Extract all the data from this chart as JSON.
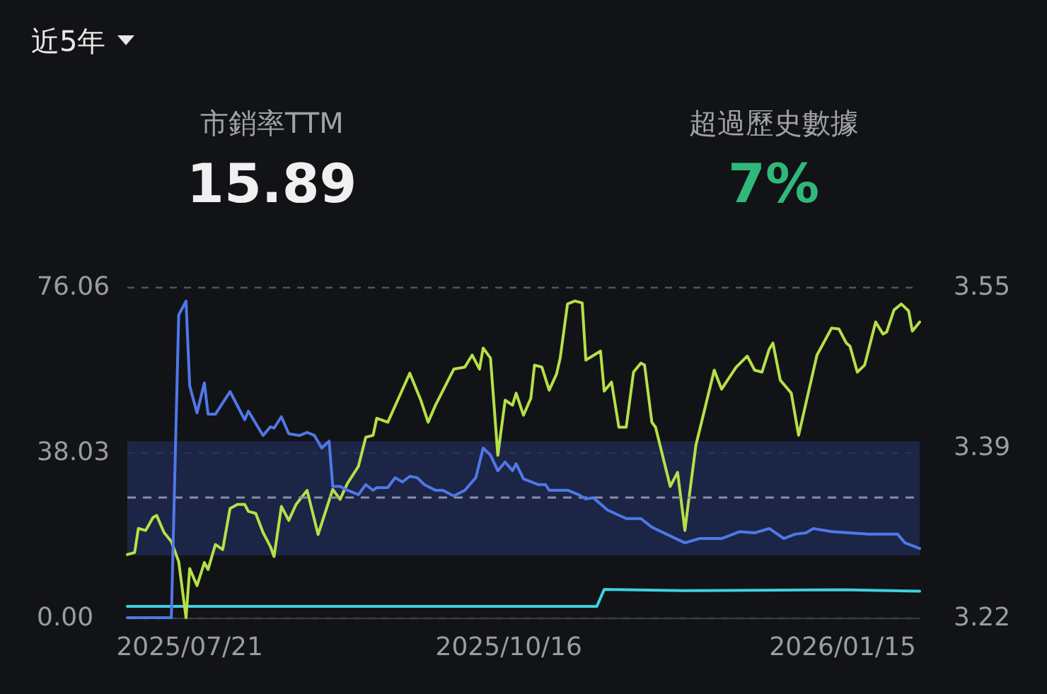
{
  "chart_data": {
    "type": "line",
    "annotations": [
      "近5年",
      "市銷率TTM",
      "15.89",
      "超過歷史數據",
      "7%"
    ],
    "xlim": [
      "2025-07-04",
      "2026-02-05"
    ],
    "xticks": [
      {
        "value": "2025-07-21",
        "label": "2025/07/21"
      },
      {
        "value": "2025-10-16",
        "label": "2025/10/16"
      },
      {
        "value": "2026-01-15",
        "label": "2026/01/15"
      }
    ],
    "ylim": [
      0,
      76.06
    ],
    "yticks": [
      {
        "value": 0,
        "label": "0.00"
      },
      38.03,
      76.06
    ],
    "y2lim": [
      3.22,
      3.55
    ],
    "y2ticks": [
      3.22,
      3.39,
      3.55
    ],
    "grid": "y",
    "marker": "none",
    "line_style": "solid",
    "bands": [
      {
        "axis": "y",
        "from": 14.3,
        "to": 40.6,
        "color": "#1f2b52"
      }
    ],
    "ref_lines": [
      {
        "axis": "y",
        "value": 27.6,
        "line_style": "dashed",
        "color": "#8a90a0"
      }
    ],
    "series": [
      {
        "color": "#3fd0e0",
        "x": [
          "2025-07-04",
          "2025-11-09",
          "2025-11-11",
          "2025-12-03",
          "2026-01-15",
          "2026-02-05"
        ],
        "values": [
          2.6,
          2.6,
          6.5,
          6.2,
          6.4,
          6.1
        ]
      },
      {
        "color": "#b5e048",
        "axis": "y2",
        "x": [
          "2025-07-04",
          "2025-07-06",
          "2025-07-07",
          "2025-07-09",
          "2025-07-11",
          "2025-07-12",
          "2025-07-14",
          "2025-07-16",
          "2025-07-18",
          "2025-07-20",
          "2025-07-21",
          "2025-07-23",
          "2025-07-25",
          "2025-07-26",
          "2025-07-28",
          "2025-07-30",
          "2025-08-01",
          "2025-08-03",
          "2025-08-05",
          "2025-08-06",
          "2025-08-08",
          "2025-08-10",
          "2025-08-12",
          "2025-08-13",
          "2025-08-15",
          "2025-08-17",
          "2025-08-19",
          "2025-08-22",
          "2025-08-25",
          "2025-08-29",
          "2025-08-31",
          "2025-09-02",
          "2025-09-05",
          "2025-09-07",
          "2025-09-09",
          "2025-09-10",
          "2025-09-13",
          "2025-09-19",
          "2025-09-22",
          "2025-09-24",
          "2025-09-26",
          "2025-10-01",
          "2025-10-04",
          "2025-10-06",
          "2025-10-08",
          "2025-10-09",
          "2025-10-11",
          "2025-10-13",
          "2025-10-15",
          "2025-10-17",
          "2025-10-18",
          "2025-10-20",
          "2025-10-22",
          "2025-10-23",
          "2025-10-25",
          "2025-10-27",
          "2025-10-29",
          "2025-10-30",
          "2025-11-01",
          "2025-11-03",
          "2025-11-05",
          "2025-11-06",
          "2025-11-10",
          "2025-11-11",
          "2025-11-13",
          "2025-11-15",
          "2025-11-17",
          "2025-11-19",
          "2025-11-21",
          "2025-11-22",
          "2025-11-24",
          "2025-11-25",
          "2025-11-29",
          "2025-12-01",
          "2025-12-03",
          "2025-12-04",
          "2025-12-06",
          "2025-12-11",
          "2025-12-13",
          "2025-12-17",
          "2025-12-20",
          "2025-12-22",
          "2025-12-24",
          "2025-12-26",
          "2025-12-27",
          "2025-12-29",
          "2026-01-01",
          "2026-01-03",
          "2026-01-08",
          "2026-01-12",
          "2026-01-14",
          "2026-01-16",
          "2026-01-17",
          "2026-01-19",
          "2026-01-21",
          "2026-01-24",
          "2026-01-26",
          "2026-01-27",
          "2026-01-29",
          "2026-01-31",
          "2026-02-02",
          "2026-02-03",
          "2026-02-05"
        ],
        "values": [
          3.283,
          3.285,
          3.309,
          3.307,
          3.32,
          3.322,
          3.305,
          3.296,
          3.276,
          3.22,
          3.269,
          3.252,
          3.275,
          3.268,
          3.293,
          3.288,
          3.329,
          3.333,
          3.333,
          3.326,
          3.324,
          3.305,
          3.291,
          3.281,
          3.331,
          3.317,
          3.333,
          3.347,
          3.303,
          3.348,
          3.338,
          3.354,
          3.371,
          3.4,
          3.402,
          3.419,
          3.415,
          3.464,
          3.437,
          3.415,
          3.432,
          3.468,
          3.47,
          3.482,
          3.468,
          3.489,
          3.479,
          3.382,
          3.437,
          3.432,
          3.444,
          3.422,
          3.439,
          3.472,
          3.47,
          3.447,
          3.463,
          3.479,
          3.533,
          3.536,
          3.534,
          3.477,
          3.486,
          3.446,
          3.455,
          3.41,
          3.41,
          3.465,
          3.474,
          3.472,
          3.415,
          3.41,
          3.351,
          3.365,
          3.307,
          3.336,
          3.392,
          3.467,
          3.448,
          3.47,
          3.481,
          3.467,
          3.465,
          3.488,
          3.494,
          3.457,
          3.444,
          3.402,
          3.482,
          3.509,
          3.508,
          3.494,
          3.491,
          3.465,
          3.472,
          3.515,
          3.503,
          3.505,
          3.527,
          3.533,
          3.526,
          3.506,
          3.515
        ]
      },
      {
        "color": "#4f78e8",
        "x": [
          "2025-07-04",
          "2025-07-16",
          "2025-07-18",
          "2025-07-20",
          "2025-07-21",
          "2025-07-23",
          "2025-07-25",
          "2025-07-26",
          "2025-07-28",
          "2025-08-01",
          "2025-08-05",
          "2025-08-06",
          "2025-08-10",
          "2025-08-12",
          "2025-08-13",
          "2025-08-15",
          "2025-08-17",
          "2025-08-20",
          "2025-08-22",
          "2025-08-24",
          "2025-08-26",
          "2025-08-28",
          "2025-08-29",
          "2025-08-31",
          "2025-09-02",
          "2025-09-05",
          "2025-09-07",
          "2025-09-09",
          "2025-09-10",
          "2025-09-13",
          "2025-09-15",
          "2025-09-17",
          "2025-09-19",
          "2025-09-21",
          "2025-09-23",
          "2025-09-26",
          "2025-09-28",
          "2025-10-01",
          "2025-10-04",
          "2025-10-07",
          "2025-10-09",
          "2025-10-11",
          "2025-10-13",
          "2025-10-15",
          "2025-10-17",
          "2025-10-18",
          "2025-10-20",
          "2025-10-24",
          "2025-10-26",
          "2025-10-27",
          "2025-11-01",
          "2025-11-04",
          "2025-11-06",
          "2025-11-08",
          "2025-11-12",
          "2025-11-17",
          "2025-11-21",
          "2025-11-24",
          "2025-11-28",
          "2025-12-03",
          "2025-12-07",
          "2025-12-13",
          "2025-12-18",
          "2025-12-22",
          "2025-12-26",
          "2025-12-30",
          "2026-01-02",
          "2026-01-05",
          "2026-01-07",
          "2026-01-12",
          "2026-01-17",
          "2026-01-22",
          "2026-01-30",
          "2026-02-01",
          "2026-02-05"
        ],
        "values": [
          0,
          0,
          69.6,
          72.8,
          53.3,
          47.1,
          54.0,
          46.8,
          46.8,
          52.0,
          45.5,
          47.5,
          41.9,
          43.9,
          43.6,
          46.2,
          42.3,
          41.9,
          42.6,
          41.9,
          39.0,
          40.6,
          30.2,
          30.2,
          29.3,
          28.3,
          30.6,
          29.3,
          29.9,
          29.9,
          32.2,
          31.2,
          32.5,
          32.2,
          30.6,
          29.3,
          29.3,
          28.0,
          29.3,
          32.2,
          39.0,
          37.4,
          33.8,
          35.8,
          33.8,
          35.4,
          31.9,
          30.6,
          30.6,
          29.3,
          29.3,
          28.3,
          27.3,
          27.6,
          24.7,
          22.8,
          22.8,
          20.8,
          19.2,
          17.2,
          18.2,
          18.2,
          19.8,
          19.5,
          20.5,
          18.2,
          19.2,
          19.5,
          20.5,
          19.8,
          19.5,
          19.2,
          19.2,
          17.2,
          15.9
        ]
      }
    ]
  }
}
